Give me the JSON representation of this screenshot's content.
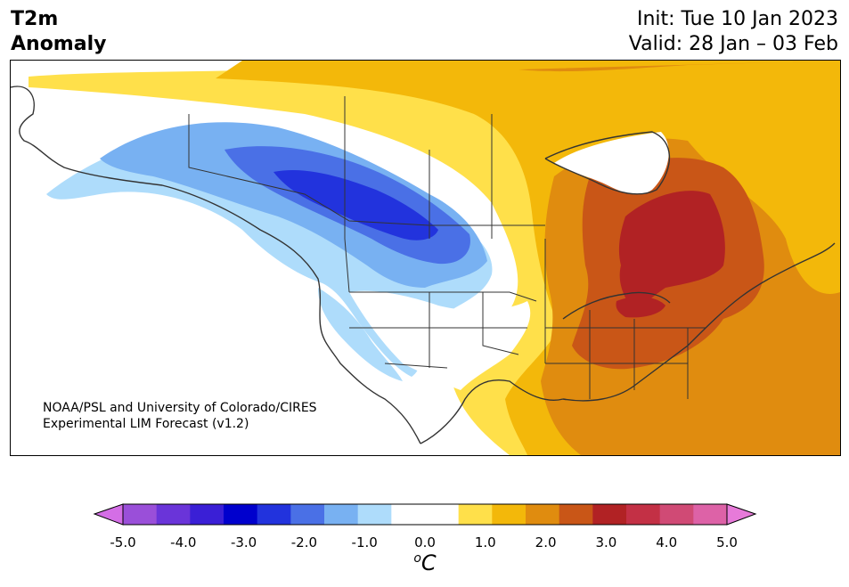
{
  "header": {
    "title_line1": "T2m",
    "title_line2": "Anomaly",
    "init": "Init: Tue 10 Jan 2023",
    "valid": "Valid: 28 Jan – 03 Feb"
  },
  "credit": {
    "line1": "NOAA/PSL and University of Colorado/CIRES",
    "line2": "Experimental LIM Forecast (v1.2)"
  },
  "colorbar": {
    "ticks": [
      "-5.0",
      "-4.0",
      "-3.0",
      "-2.0",
      "-1.0",
      "0.0",
      "1.0",
      "2.0",
      "3.0",
      "4.0",
      "5.0"
    ],
    "unit_base": "o",
    "unit_letter": "C",
    "colors": [
      "#d46ee6",
      "#9a4fd9",
      "#6a34d9",
      "#3a1fd6",
      "#0000cd",
      "#2233dd",
      "#4a70e6",
      "#78b1f2",
      "#aedcfb",
      "#ffffff",
      "#ffffff",
      "#ffe04a",
      "#f3b80a",
      "#e08c0f",
      "#c95617",
      "#b12224",
      "#c33045",
      "#d04a75",
      "#dd62a7",
      "#e77ad9"
    ]
  },
  "map": {
    "colors": {
      "cool1": "#aedcfb",
      "cool2": "#78b1f2",
      "cool3": "#4a70e6",
      "cool4": "#2233dd",
      "warm1": "#ffe04a",
      "warm2": "#f3b80a",
      "warm3": "#e08c0f",
      "warm4": "#c95617",
      "warm5": "#b12224",
      "water": "#ffffff",
      "border": "#333333"
    }
  }
}
